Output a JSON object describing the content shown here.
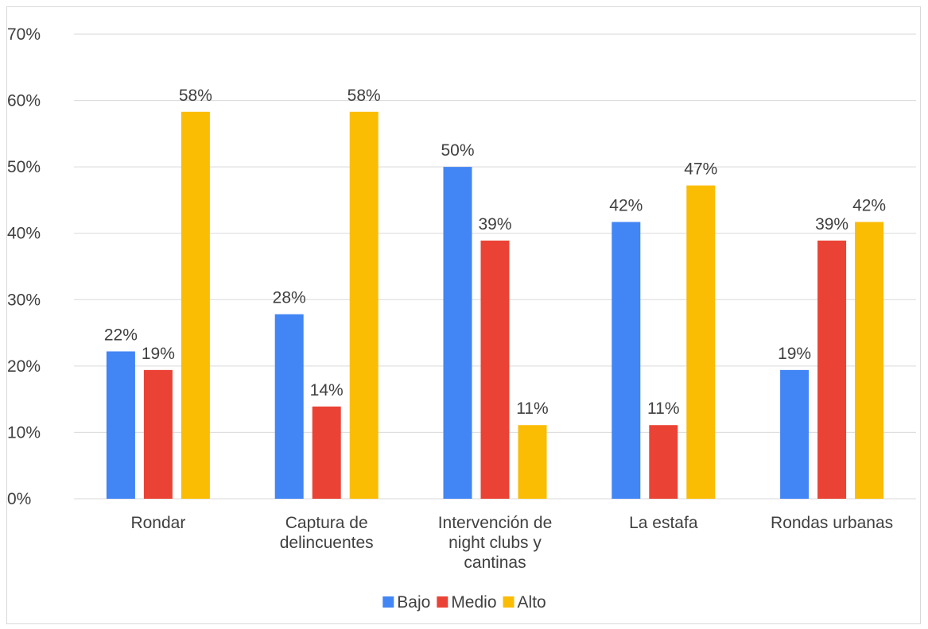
{
  "chart_data": {
    "type": "bar",
    "title": "",
    "xlabel": "",
    "ylabel": "",
    "ylim": [
      0,
      70
    ],
    "y_ticks": [
      "0%",
      "10%",
      "20%",
      "30%",
      "40%",
      "50%",
      "60%",
      "70%"
    ],
    "y_tick_values": [
      0,
      10,
      20,
      30,
      40,
      50,
      60,
      70
    ],
    "grid": true,
    "legend_position": "bottom",
    "categories": [
      [
        "Rondar"
      ],
      [
        "Captura de",
        "delincuentes"
      ],
      [
        "Intervención de",
        "night clubs y",
        "cantinas"
      ],
      [
        "La estafa"
      ],
      [
        "Rondas urbanas"
      ]
    ],
    "series": [
      {
        "name": "Bajo",
        "color": "#4285f4",
        "values": [
          22.2,
          27.8,
          50.0,
          41.7,
          19.4
        ],
        "labels": [
          "22%",
          "28%",
          "50%",
          "42%",
          "19%"
        ]
      },
      {
        "name": "Medio",
        "color": "#ea4335",
        "values": [
          19.4,
          13.9,
          38.9,
          11.1,
          38.9
        ],
        "labels": [
          "19%",
          "14%",
          "39%",
          "11%",
          "39%"
        ]
      },
      {
        "name": "Alto",
        "color": "#fbbc04",
        "values": [
          58.3,
          58.3,
          11.1,
          47.2,
          41.7
        ],
        "labels": [
          "58%",
          "58%",
          "11%",
          "47%",
          "42%"
        ]
      }
    ]
  }
}
